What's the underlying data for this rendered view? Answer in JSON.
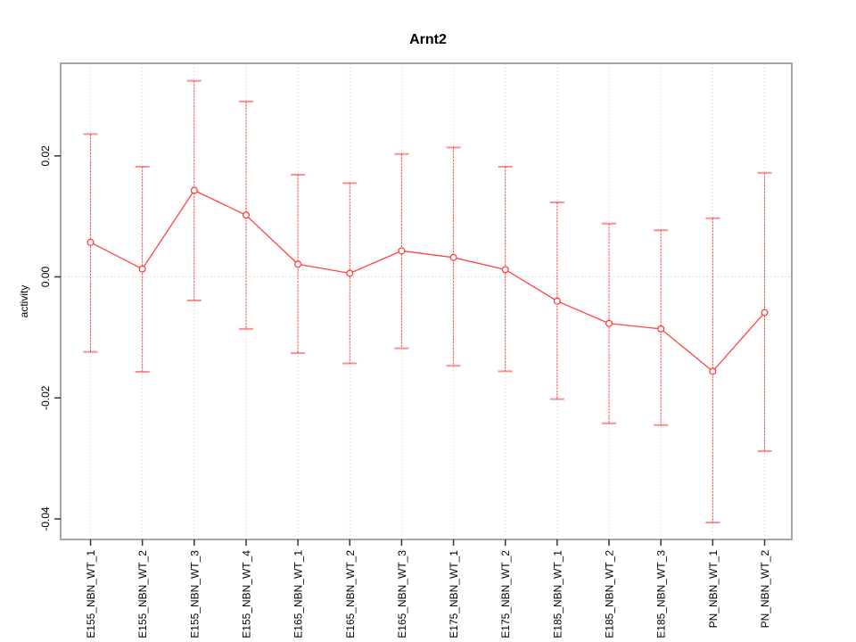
{
  "figure": {
    "background": "#ffffff"
  },
  "chart_data": {
    "type": "line",
    "title": "Arnt2",
    "xlabel": "",
    "ylabel": "activity",
    "categories": [
      "E155_NBN_WT_1",
      "E155_NBN_WT_2",
      "E155_NBN_WT_3",
      "E155_NBN_WT_4",
      "E165_NBN_WT_1",
      "E165_NBN_WT_2",
      "E165_NBN_WT_3",
      "E175_NBN_WT_1",
      "E175_NBN_WT_2",
      "E185_NBN_WT_1",
      "E185_NBN_WT_2",
      "E185_NBN_WT_3",
      "PN_NBN_WT_1",
      "PN_NBN_WT_2"
    ],
    "series": [
      {
        "name": "activity",
        "values": [
          0.0057,
          0.0013,
          0.0143,
          0.0102,
          0.0021,
          0.0006,
          0.0043,
          0.0032,
          0.0012,
          -0.004,
          -0.0077,
          -0.0086,
          -0.0156,
          -0.0059
        ],
        "error_upper": [
          0.0236,
          0.0182,
          0.0324,
          0.029,
          0.0169,
          0.0155,
          0.0203,
          0.0214,
          0.0182,
          0.0123,
          0.0088,
          0.0077,
          0.0097,
          0.0172
        ],
        "error_lower": [
          -0.0124,
          -0.0157,
          -0.0039,
          -0.0086,
          -0.0126,
          -0.0143,
          -0.0118,
          -0.0147,
          -0.0156,
          -0.0202,
          -0.0242,
          -0.0245,
          -0.0406,
          -0.0288
        ]
      }
    ],
    "ylim": [
      -0.0434,
      0.0353
    ],
    "yticks": {
      "values": [
        0.02,
        0.0,
        -0.02,
        -0.04
      ],
      "labels": [
        "0.02",
        "0.00",
        "-0.02",
        "-0.04"
      ]
    },
    "grid": {
      "horizontal_at": [
        0
      ],
      "vertical_at_each_category": true,
      "style": "dotted"
    },
    "legend": "none",
    "marker": "open-circle",
    "colors": {
      "series": "#ff3333",
      "grid": "#d9d9d9",
      "box": "#9c9c9c",
      "tick": "#333333",
      "text": "#000000"
    }
  }
}
